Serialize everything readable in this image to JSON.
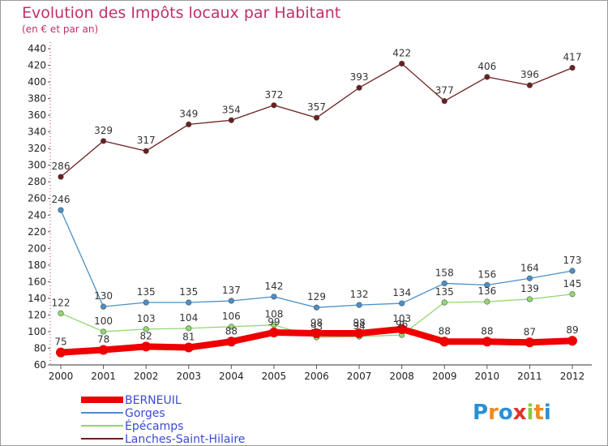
{
  "chart_data": {
    "type": "line",
    "title": "Evolution des Impôts locaux par Habitant",
    "subtitle": "(en € et par an)",
    "xlabel": "",
    "ylabel": "",
    "categories": [
      "2000",
      "2001",
      "2002",
      "2003",
      "2004",
      "2005",
      "2006",
      "2007",
      "2008",
      "2009",
      "2010",
      "2011",
      "2012"
    ],
    "ylim": [
      60,
      440
    ],
    "ytick_step": 20,
    "grid": false,
    "legend_position": "bottom-left",
    "series": [
      {
        "name": "Lanches-Saint-Hilaire",
        "color": "#6b1f1f",
        "values": [
          286,
          329,
          317,
          349,
          354,
          372,
          357,
          393,
          422,
          377,
          406,
          396,
          417
        ]
      },
      {
        "name": "Gorges",
        "color": "#4a8fc8",
        "values": [
          246,
          130,
          135,
          135,
          137,
          142,
          129,
          132,
          134,
          158,
          156,
          164,
          173
        ]
      },
      {
        "name": "Épécamps",
        "color": "#90d870",
        "values": [
          122,
          100,
          103,
          104,
          106,
          108,
          93,
          94,
          96,
          135,
          136,
          139,
          145
        ]
      },
      {
        "name": "BERNEUIL",
        "color": "#ee0000",
        "values": [
          75,
          78,
          82,
          81,
          88,
          99,
          98,
          98,
          103,
          88,
          88,
          87,
          89
        ]
      }
    ]
  },
  "legend": {
    "items": [
      {
        "label": "BERNEUIL",
        "color": "#ee0000"
      },
      {
        "label": "Gorges",
        "color": "#4a8fc8"
      },
      {
        "label": "Épécamps",
        "color": "#90d870"
      },
      {
        "label": "Lanches-Saint-Hilaire",
        "color": "#6b1f1f"
      }
    ]
  },
  "logo": {
    "text": "Proxiti"
  }
}
